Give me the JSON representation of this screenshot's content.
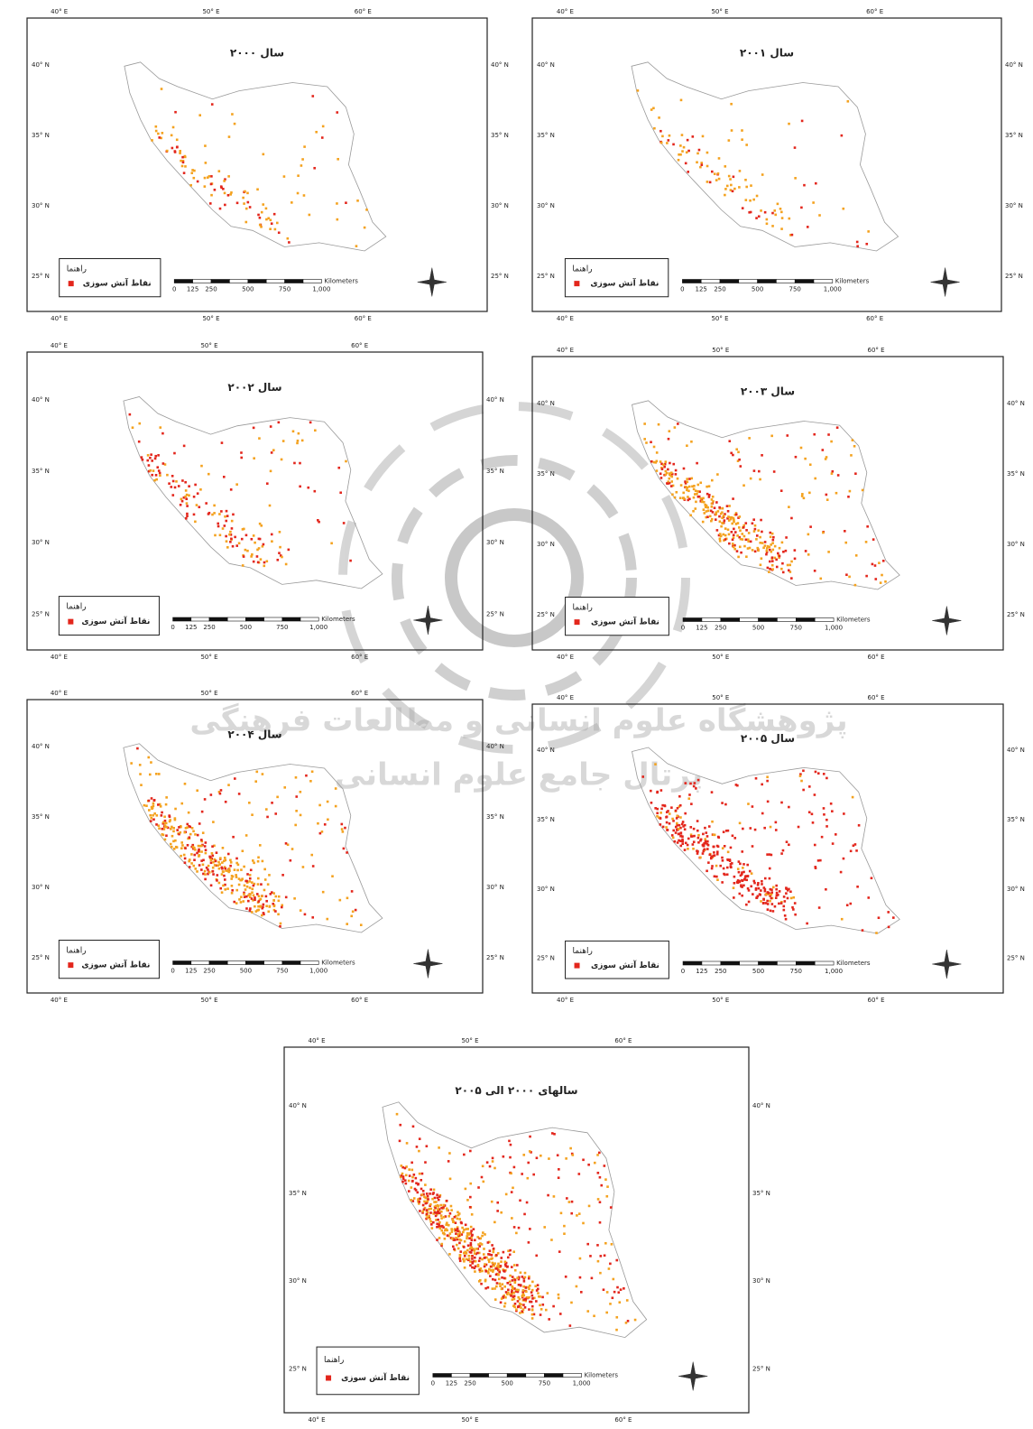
{
  "panels": [
    {
      "title": "سال ۲۰۰۰"
    },
    {
      "title": "سال ۲۰۰۱"
    },
    {
      "title": "سال ۲۰۰۲"
    },
    {
      "title": "سال ۲۰۰۳"
    },
    {
      "title": "سال ۲۰۰۴"
    },
    {
      "title": "سال ۲۰۰۵"
    },
    {
      "title": "سالهای ۲۰۰۰ الی ۲۰۰۵"
    }
  ],
  "graticule": {
    "lon": [
      "40° E",
      "50° E",
      "60° E"
    ],
    "lat": [
      "40° N",
      "35° N",
      "30° N",
      "25° N"
    ]
  },
  "legend": {
    "title": "راهنما",
    "item": "نقاط آتش سوزی"
  },
  "scale": {
    "labels": [
      "0",
      "125",
      "250",
      "500",
      "750",
      "1,000"
    ],
    "unit": "Kilometers"
  },
  "watermark": {
    "line1": "پژوهشگاه علوم انسانی و مطالعات فرهنگی",
    "line2": "پرتال جامع علوم انسانی"
  }
}
